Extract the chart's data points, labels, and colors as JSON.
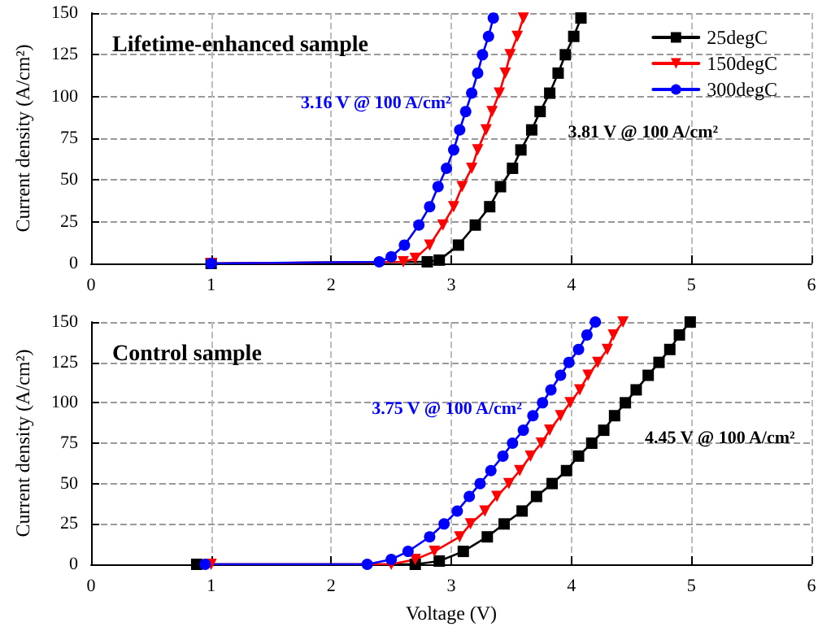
{
  "chart_data": [
    {
      "type": "line",
      "title": "Lifetime-enhanced sample",
      "ylabel": "Current density (A/cm²)",
      "xlim": [
        0,
        6
      ],
      "xticks": [
        0,
        1,
        2,
        3,
        4,
        5,
        6
      ],
      "ylim": [
        0,
        150
      ],
      "yticks": [
        0,
        25,
        50,
        75,
        100,
        125,
        150
      ],
      "grid": true,
      "legend": "top right",
      "line_style": "solid",
      "annotations": [
        {
          "text": "3.16 V @ 100 A/cm²",
          "x": 3.16,
          "y": 100
        },
        {
          "text": "3.81 V @ 100 A/cm²",
          "x": 3.81,
          "y": 100
        }
      ],
      "series": [
        {
          "name": "25degC",
          "color": "#000000",
          "marker": "square",
          "x": [
            1,
            2.8,
            2.9,
            3.06,
            3.2,
            3.32,
            3.41,
            3.51,
            3.58,
            3.67,
            3.74,
            3.82,
            3.89,
            3.95,
            4.02,
            4.08
          ],
          "values": [
            0,
            1,
            2,
            11,
            23,
            34,
            46,
            57,
            68,
            80,
            91,
            102,
            114,
            125,
            136,
            147
          ]
        },
        {
          "name": "150degC",
          "color": "#ff0000",
          "marker": "triangle",
          "x": [
            1,
            2.6,
            2.7,
            2.82,
            2.93,
            3.02,
            3.09,
            3.17,
            3.22,
            3.29,
            3.34,
            3.4,
            3.45,
            3.49,
            3.55,
            3.6
          ],
          "values": [
            0,
            1,
            3,
            11,
            23,
            34,
            46,
            57,
            68,
            80,
            91,
            102,
            114,
            125,
            136,
            147
          ]
        },
        {
          "name": "300degC",
          "color": "#0000ff",
          "marker": "circle",
          "x": [
            1,
            2.4,
            2.5,
            2.61,
            2.73,
            2.82,
            2.89,
            2.96,
            3.02,
            3.07,
            3.12,
            3.17,
            3.22,
            3.26,
            3.31,
            3.35
          ],
          "values": [
            0,
            1,
            4,
            11,
            23,
            34,
            46,
            57,
            68,
            80,
            91,
            102,
            114,
            125,
            136,
            147
          ]
        }
      ]
    },
    {
      "type": "line",
      "title": "Control sample",
      "xlabel": "Voltage (V)",
      "ylabel": "Current density (A/cm²)",
      "xlim": [
        0,
        6
      ],
      "xticks": [
        0,
        1,
        2,
        3,
        4,
        5,
        6
      ],
      "ylim": [
        0,
        150
      ],
      "yticks": [
        0,
        25,
        50,
        75,
        100,
        125,
        150
      ],
      "grid": true,
      "legend": false,
      "line_style": "solid",
      "annotations": [
        {
          "text": "3.75 V @ 100 A/cm²",
          "x": 3.75,
          "y": 100
        },
        {
          "text": "4.45 V @ 100 A/cm²",
          "x": 4.45,
          "y": 100
        }
      ],
      "series": [
        {
          "color": "#000000",
          "marker": "square",
          "x": [
            0.88,
            2.7,
            2.9,
            3.1,
            3.3,
            3.44,
            3.59,
            3.71,
            3.84,
            3.96,
            4.06,
            4.17,
            4.27,
            4.36,
            4.45,
            4.54,
            4.64,
            4.73,
            4.82,
            4.9,
            4.99
          ],
          "values": [
            0,
            0,
            2,
            8,
            17,
            25,
            33,
            42,
            50,
            58,
            67,
            75,
            83,
            92,
            100,
            108,
            117,
            125,
            133,
            142,
            150
          ]
        },
        {
          "color": "#ff0000",
          "marker": "triangle",
          "x": [
            1,
            2.5,
            2.7,
            2.86,
            3.07,
            3.16,
            3.28,
            3.38,
            3.48,
            3.57,
            3.66,
            3.75,
            3.82,
            3.91,
            3.99,
            4.07,
            4.14,
            4.22,
            4.3,
            4.35,
            4.43
          ],
          "values": [
            0,
            0,
            3,
            8,
            17,
            25,
            33,
            42,
            50,
            58,
            67,
            75,
            83,
            92,
            100,
            108,
            117,
            125,
            133,
            142,
            150
          ]
        },
        {
          "color": "#0000ff",
          "marker": "circle",
          "x": [
            0.95,
            2.3,
            2.5,
            2.64,
            2.82,
            2.94,
            3.05,
            3.15,
            3.24,
            3.33,
            3.43,
            3.51,
            3.6,
            3.68,
            3.76,
            3.83,
            3.91,
            3.98,
            4.06,
            4.13,
            4.2
          ],
          "values": [
            0,
            0,
            3,
            8,
            17,
            25,
            33,
            42,
            50,
            58,
            67,
            75,
            83,
            92,
            100,
            108,
            117,
            125,
            133,
            142,
            150
          ]
        }
      ]
    }
  ]
}
